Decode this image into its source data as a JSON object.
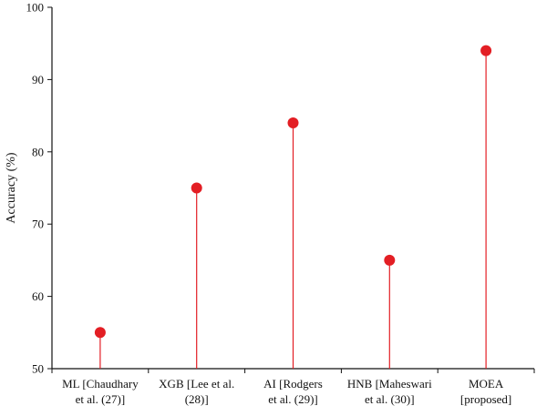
{
  "chart_data": {
    "type": "scatter",
    "subtype": "lollipop",
    "title": "",
    "xlabel": "",
    "ylabel": "Accuracy (%)",
    "ylim": [
      50,
      100
    ],
    "yticks": [
      50,
      60,
      70,
      80,
      90,
      100
    ],
    "grid": false,
    "legend": "none",
    "categories": [
      [
        "ML [Chaudhary",
        "et al. (27)]"
      ],
      [
        "XGB [Lee et al.",
        "(28)]"
      ],
      [
        "AI [Rodgers",
        "et al. (29)]"
      ],
      [
        "HNB [Maheswari",
        "et al. (30)]"
      ],
      [
        "MOEA",
        "[proposed]"
      ]
    ],
    "values": [
      55,
      75,
      84,
      65,
      94
    ],
    "colors": {
      "marker": "#e31e24",
      "stem": "#e31e24",
      "axis": "#111111"
    }
  }
}
